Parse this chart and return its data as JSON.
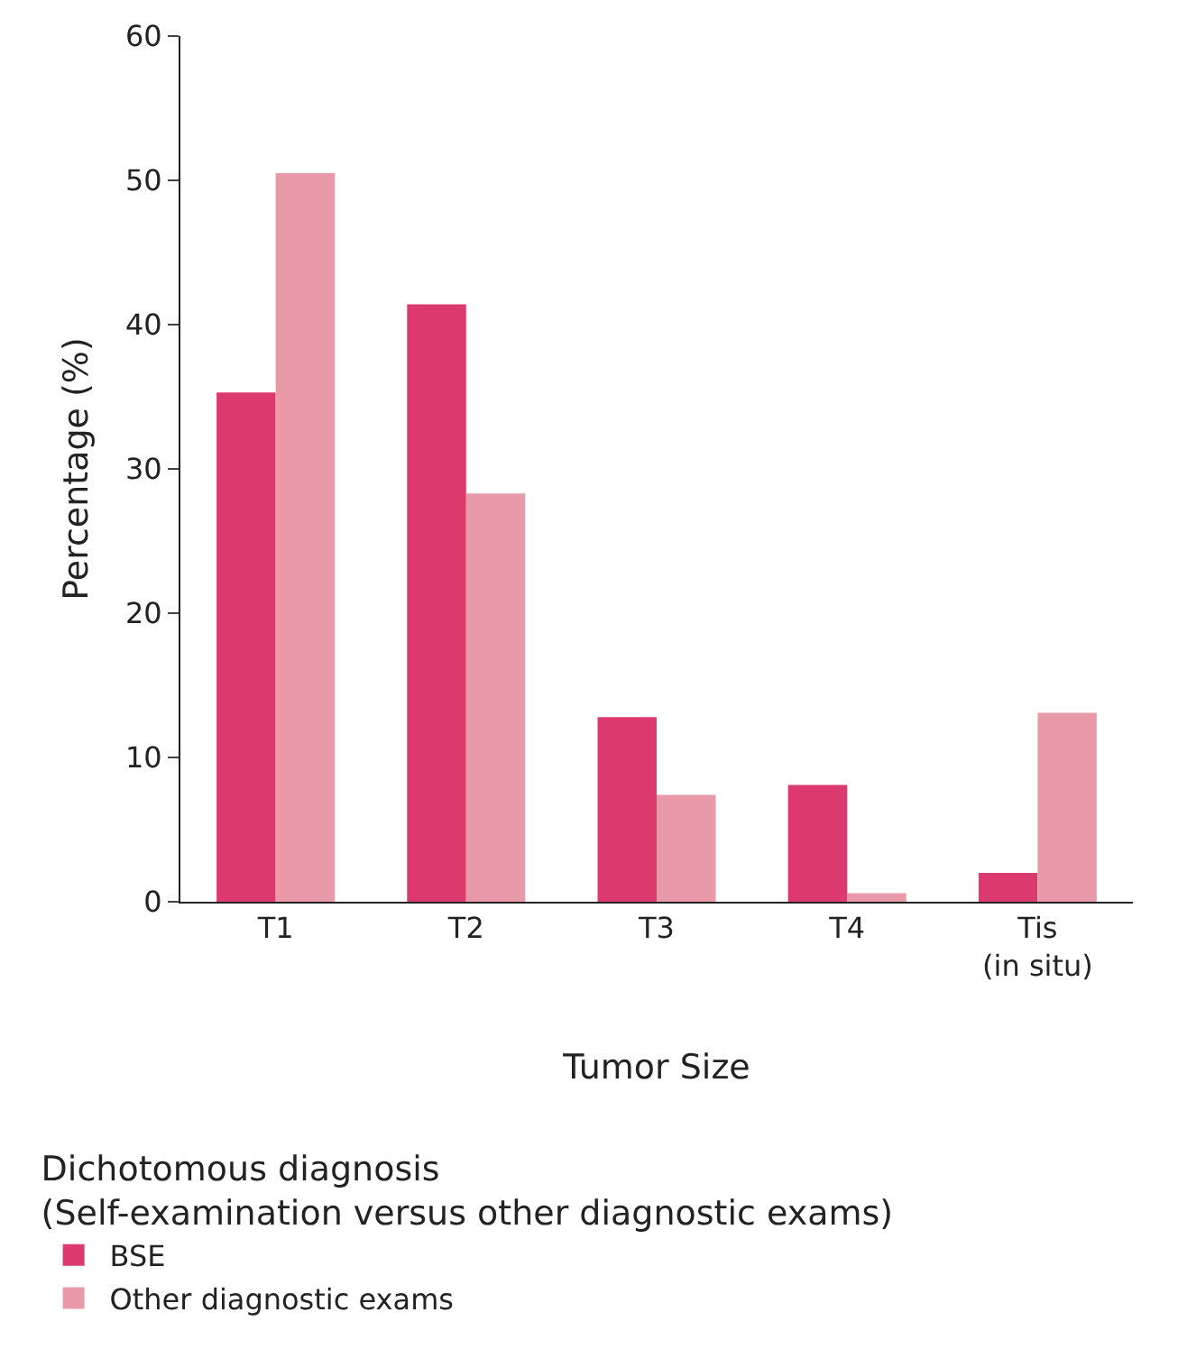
{
  "chart_data": {
    "type": "bar",
    "xlabel": "Tumor Size",
    "ylabel": "Percentage (%)",
    "legend_title": "Dichotomous diagnosis\n(Self-examination versus other diagnostic exams)",
    "categories": [
      "T1",
      "T2",
      "T3",
      "T4",
      "Tis\n(in situ)"
    ],
    "series": [
      {
        "name": "BSE",
        "color": "#dc3a6e",
        "values": [
          35.3,
          41.4,
          12.8,
          8.1,
          2.0
        ]
      },
      {
        "name": "Other diagnostic exams",
        "color": "#e89aa8",
        "values": [
          50.5,
          28.3,
          7.4,
          0.6,
          13.1
        ]
      }
    ],
    "ylim": [
      0,
      60
    ],
    "yticks": [
      0,
      10,
      20,
      30,
      40,
      50,
      60
    ],
    "legend": "bottom left"
  }
}
